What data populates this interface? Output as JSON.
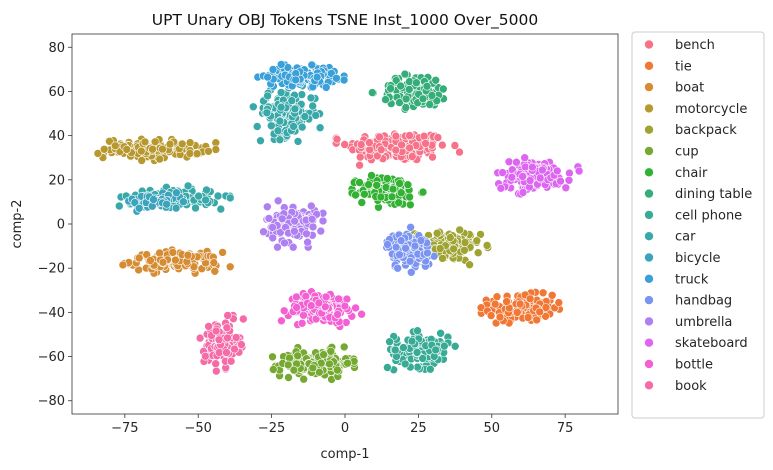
{
  "chart_data": {
    "type": "scatter",
    "title": "UPT Unary OBJ Tokens TSNE Inst_1000 Over_5000",
    "xlabel": "comp-1",
    "ylabel": "comp-2",
    "xlim": [
      -93,
      93
    ],
    "ylim": [
      -86,
      86
    ],
    "x_ticks": [
      -75,
      -50,
      -25,
      0,
      25,
      50,
      75
    ],
    "y_ticks": [
      -80,
      -60,
      -40,
      -20,
      0,
      20,
      40,
      60,
      80
    ],
    "grid": false,
    "legend_position": "outside-right",
    "series": [
      {
        "name": "bench",
        "color": "#f77189",
        "clusters": [
          {
            "center": [
              18,
              35
            ],
            "spread": [
              20,
              8
            ],
            "count": 200
          }
        ]
      },
      {
        "name": "tie",
        "color": "#f27734",
        "clusters": [
          {
            "center": [
              60,
              -38
            ],
            "spread": [
              13,
              7
            ],
            "count": 150
          }
        ]
      },
      {
        "name": "boat",
        "color": "#d58c32",
        "clusters": [
          {
            "center": [
              -58,
              -17
            ],
            "spread": [
              18,
              5
            ],
            "count": 140
          }
        ]
      },
      {
        "name": "motorcycle",
        "color": "#b7982f",
        "clusters": [
          {
            "center": [
              -65,
              34
            ],
            "spread": [
              20,
              5
            ],
            "count": 140
          }
        ]
      },
      {
        "name": "backpack",
        "color": "#9ea331",
        "clusters": [
          {
            "center": [
              35,
              -10
            ],
            "spread": [
              13,
              8
            ],
            "count": 120
          }
        ]
      },
      {
        "name": "cup",
        "color": "#75a931",
        "clusters": [
          {
            "center": [
              -10,
              -63
            ],
            "spread": [
              14,
              7
            ],
            "count": 160
          }
        ]
      },
      {
        "name": "chair",
        "color": "#32b133",
        "clusters": [
          {
            "center": [
              15,
              15
            ],
            "spread": [
              12,
              8
            ],
            "count": 110
          }
        ]
      },
      {
        "name": "dining table",
        "color": "#35ad79",
        "clusters": [
          {
            "center": [
              24,
              60
            ],
            "spread": [
              14,
              9
            ],
            "count": 130
          }
        ]
      },
      {
        "name": "cell phone",
        "color": "#37ab95",
        "clusters": [
          {
            "center": [
              26,
              -57
            ],
            "spread": [
              11,
              9
            ],
            "count": 130
          }
        ]
      },
      {
        "name": "car",
        "color": "#39a8a8",
        "clusters": [
          {
            "center": [
              -20,
              50
            ],
            "spread": [
              12,
              12
            ],
            "count": 140
          },
          {
            "center": [
              -58,
              12
            ],
            "spread": [
              18,
              5
            ],
            "count": 120
          }
        ]
      },
      {
        "name": "bicycle",
        "color": "#3ba3bb",
        "clusters": [
          {
            "center": [
              -65,
              10
            ],
            "spread": [
              12,
              4
            ],
            "count": 60
          }
        ]
      },
      {
        "name": "truck",
        "color": "#3aa0d9",
        "clusters": [
          {
            "center": [
              -15,
              67
            ],
            "spread": [
              14,
              5
            ],
            "count": 140
          }
        ]
      },
      {
        "name": "handbag",
        "color": "#7b94f2",
        "clusters": [
          {
            "center": [
              22,
              -12
            ],
            "spread": [
              9,
              10
            ],
            "count": 110
          }
        ]
      },
      {
        "name": "umbrella",
        "color": "#af80f2",
        "clusters": [
          {
            "center": [
              -18,
              0
            ],
            "spread": [
              10,
              10
            ],
            "count": 140
          }
        ]
      },
      {
        "name": "skateboard",
        "color": "#dc66f2",
        "clusters": [
          {
            "center": [
              64,
              22
            ],
            "spread": [
              15,
              8
            ],
            "count": 140
          }
        ]
      },
      {
        "name": "bottle",
        "color": "#f360d3",
        "clusters": [
          {
            "center": [
              -8,
              -38
            ],
            "spread": [
              13,
              8
            ],
            "count": 130
          }
        ]
      },
      {
        "name": "book",
        "color": "#f56ba8",
        "clusters": [
          {
            "center": [
              -42,
              -54
            ],
            "spread": [
              7,
              12
            ],
            "count": 130
          }
        ]
      }
    ]
  }
}
